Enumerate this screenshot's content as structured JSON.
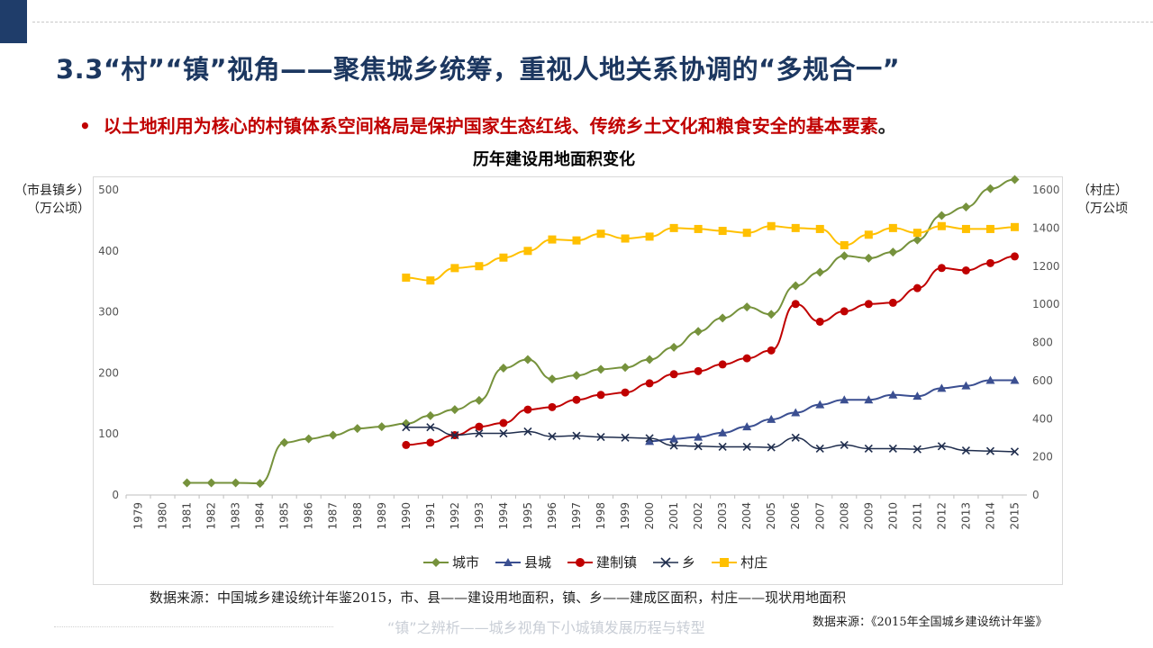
{
  "title": "3.3“村”“镇”视角——聚焦城乡统筹，重视人地关系协调的“多规合一”",
  "bullet": {
    "dot": "•",
    "text": "以土地利用为核心的村镇体系空间格局是保护国家生态红线、传统乡土文化和粮食安全的基本要素",
    "end": "。"
  },
  "left_axis_label": [
    "（市县镇乡）",
    "（万公顷）"
  ],
  "right_axis_label": [
    "（村庄）",
    "（万公顷"
  ],
  "source_main": "数据来源：中国城乡建设统计年鉴2015，市、县——建设用地面积，镇、乡——建成区面积，村庄——现状用地面积",
  "source_sub": "数据来源：《2015年全国城乡建设统计年鉴》",
  "watermark": "“镇”之辨析——城乡视角下小城镇发展历程与转型",
  "colors": {
    "city": "#76923c",
    "county": "#3b4f91",
    "town": "#c00000",
    "township": "#1f2d4d",
    "village": "#ffc000"
  },
  "chart_data": {
    "type": "line",
    "title": "历年建设用地面积变化",
    "categories": [
      "1979",
      "1980",
      "1981",
      "1982",
      "1983",
      "1984",
      "1985",
      "1986",
      "1987",
      "1988",
      "1989",
      "1990",
      "1991",
      "1992",
      "1993",
      "1994",
      "1995",
      "1996",
      "1997",
      "1998",
      "1999",
      "2000",
      "2001",
      "2002",
      "2003",
      "2004",
      "2005",
      "2006",
      "2007",
      "2008",
      "2009",
      "2010",
      "2011",
      "2012",
      "2013",
      "2014",
      "2015"
    ],
    "y_left": {
      "min": 0,
      "max": 500,
      "ticks": [
        0,
        100,
        200,
        300,
        400,
        500
      ]
    },
    "y_right": {
      "min": 0,
      "max": 1600,
      "ticks": [
        0,
        200,
        400,
        600,
        800,
        1000,
        1200,
        1400,
        1600
      ]
    },
    "grid": false,
    "legend_position": "bottom",
    "series": [
      {
        "name": "城市",
        "key": "city",
        "axis": "left",
        "marker": "diamond",
        "values": [
          null,
          null,
          20,
          20,
          20,
          19,
          86,
          92,
          98,
          109,
          112,
          117,
          130,
          140,
          155,
          208,
          222,
          190,
          196,
          206,
          209,
          222,
          242,
          268,
          290,
          308,
          296,
          343,
          365,
          392,
          388,
          398,
          418,
          458,
          472,
          502,
          517
        ]
      },
      {
        "name": "县城",
        "key": "county",
        "axis": "left",
        "marker": "triangle",
        "values": [
          null,
          null,
          null,
          null,
          null,
          null,
          null,
          null,
          null,
          null,
          null,
          null,
          null,
          null,
          null,
          null,
          null,
          null,
          null,
          null,
          null,
          88,
          92,
          95,
          102,
          112,
          124,
          135,
          148,
          156,
          156,
          164,
          162,
          175,
          179,
          188,
          188
        ]
      },
      {
        "name": "建制镇",
        "key": "town",
        "axis": "left",
        "marker": "circle",
        "values": [
          null,
          null,
          null,
          null,
          null,
          null,
          null,
          null,
          null,
          null,
          null,
          82,
          86,
          98,
          112,
          118,
          140,
          144,
          156,
          164,
          168,
          183,
          198,
          203,
          214,
          224,
          237,
          313,
          284,
          301,
          313,
          315,
          339,
          372,
          368,
          380,
          391
        ]
      },
      {
        "name": "乡",
        "key": "township",
        "axis": "left",
        "marker": "x",
        "values": [
          null,
          null,
          null,
          null,
          null,
          null,
          null,
          null,
          null,
          null,
          null,
          111,
          111,
          98,
          101,
          101,
          104,
          96,
          97,
          95,
          94,
          93,
          81,
          80,
          79,
          79,
          78,
          94,
          76,
          82,
          76,
          76,
          75,
          80,
          73,
          72,
          71
        ]
      },
      {
        "name": "村庄",
        "key": "village",
        "axis": "right",
        "marker": "square",
        "values": [
          null,
          null,
          null,
          null,
          null,
          null,
          null,
          null,
          null,
          null,
          null,
          1140,
          1125,
          1190,
          1200,
          1245,
          1280,
          1340,
          1335,
          1370,
          1345,
          1355,
          1400,
          1395,
          1385,
          1375,
          1410,
          1400,
          1395,
          1310,
          1365,
          1400,
          1375,
          1410,
          1395,
          1395,
          1405
        ]
      }
    ]
  }
}
